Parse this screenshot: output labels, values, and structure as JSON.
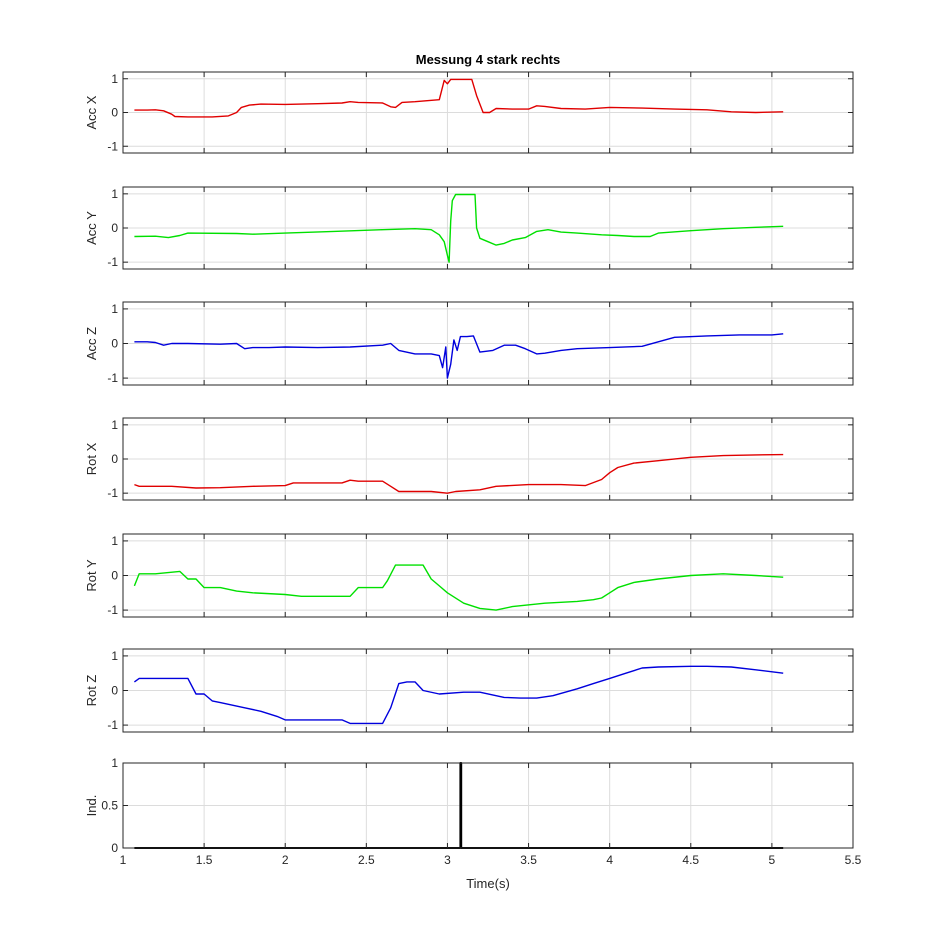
{
  "chart_data": {
    "type": "line",
    "title": "Messung 4 stark rechts",
    "xlabel": "Time(s)",
    "xlim": [
      1,
      5.5
    ],
    "xticks": [
      "1",
      "1.5",
      "2",
      "2.5",
      "3",
      "3.5",
      "4",
      "4.5",
      "5",
      "5.5"
    ],
    "grid": true,
    "panels": [
      {
        "ylabel": "Acc X",
        "ylim": [
          -1.2,
          1.2
        ],
        "yticks": [
          "-1",
          "0",
          "1"
        ],
        "color": "#e00000",
        "points": [
          [
            1.07,
            0.07
          ],
          [
            1.15,
            0.07
          ],
          [
            1.2,
            0.08
          ],
          [
            1.25,
            0.05
          ],
          [
            1.3,
            -0.05
          ],
          [
            1.32,
            -0.12
          ],
          [
            1.4,
            -0.13
          ],
          [
            1.55,
            -0.13
          ],
          [
            1.65,
            -0.1
          ],
          [
            1.7,
            0.0
          ],
          [
            1.73,
            0.15
          ],
          [
            1.78,
            0.22
          ],
          [
            1.85,
            0.25
          ],
          [
            2.0,
            0.24
          ],
          [
            2.2,
            0.26
          ],
          [
            2.35,
            0.28
          ],
          [
            2.4,
            0.32
          ],
          [
            2.45,
            0.3
          ],
          [
            2.6,
            0.28
          ],
          [
            2.65,
            0.17
          ],
          [
            2.68,
            0.15
          ],
          [
            2.72,
            0.3
          ],
          [
            2.8,
            0.32
          ],
          [
            2.95,
            0.38
          ],
          [
            2.98,
            0.95
          ],
          [
            3.0,
            0.85
          ],
          [
            3.02,
            0.98
          ],
          [
            3.15,
            0.98
          ],
          [
            3.18,
            0.5
          ],
          [
            3.22,
            0.0
          ],
          [
            3.26,
            0.0
          ],
          [
            3.3,
            0.12
          ],
          [
            3.4,
            0.1
          ],
          [
            3.5,
            0.1
          ],
          [
            3.55,
            0.2
          ],
          [
            3.6,
            0.18
          ],
          [
            3.7,
            0.12
          ],
          [
            3.85,
            0.1
          ],
          [
            4.0,
            0.15
          ],
          [
            4.2,
            0.13
          ],
          [
            4.4,
            0.1
          ],
          [
            4.6,
            0.08
          ],
          [
            4.75,
            0.02
          ],
          [
            4.9,
            0.0
          ],
          [
            5.07,
            0.02
          ]
        ]
      },
      {
        "ylabel": "Acc Y",
        "ylim": [
          -1.2,
          1.2
        ],
        "yticks": [
          "-1",
          "0",
          "1"
        ],
        "color": "#00e000",
        "points": [
          [
            1.07,
            -0.25
          ],
          [
            1.2,
            -0.24
          ],
          [
            1.28,
            -0.28
          ],
          [
            1.35,
            -0.22
          ],
          [
            1.4,
            -0.15
          ],
          [
            1.7,
            -0.16
          ],
          [
            1.8,
            -0.18
          ],
          [
            2.0,
            -0.15
          ],
          [
            2.3,
            -0.1
          ],
          [
            2.6,
            -0.05
          ],
          [
            2.8,
            -0.02
          ],
          [
            2.9,
            -0.05
          ],
          [
            2.95,
            -0.2
          ],
          [
            2.98,
            -0.4
          ],
          [
            3.0,
            -0.8
          ],
          [
            3.01,
            -1.0
          ],
          [
            3.02,
            0.2
          ],
          [
            3.03,
            0.8
          ],
          [
            3.05,
            0.98
          ],
          [
            3.17,
            0.98
          ],
          [
            3.18,
            0.0
          ],
          [
            3.2,
            -0.3
          ],
          [
            3.25,
            -0.4
          ],
          [
            3.3,
            -0.5
          ],
          [
            3.35,
            -0.45
          ],
          [
            3.4,
            -0.35
          ],
          [
            3.48,
            -0.28
          ],
          [
            3.55,
            -0.1
          ],
          [
            3.62,
            -0.05
          ],
          [
            3.7,
            -0.12
          ],
          [
            3.8,
            -0.15
          ],
          [
            3.95,
            -0.2
          ],
          [
            4.05,
            -0.22
          ],
          [
            4.15,
            -0.25
          ],
          [
            4.25,
            -0.25
          ],
          [
            4.3,
            -0.15
          ],
          [
            4.5,
            -0.08
          ],
          [
            4.7,
            -0.02
          ],
          [
            4.9,
            0.02
          ],
          [
            5.07,
            0.05
          ]
        ]
      },
      {
        "ylabel": "Acc Z",
        "ylim": [
          -1.2,
          1.2
        ],
        "yticks": [
          "-1",
          "0",
          "1"
        ],
        "color": "#0000dd",
        "points": [
          [
            1.07,
            0.05
          ],
          [
            1.15,
            0.05
          ],
          [
            1.2,
            0.03
          ],
          [
            1.25,
            -0.05
          ],
          [
            1.3,
            0.0
          ],
          [
            1.4,
            0.0
          ],
          [
            1.6,
            -0.02
          ],
          [
            1.7,
            0.0
          ],
          [
            1.75,
            -0.15
          ],
          [
            1.8,
            -0.12
          ],
          [
            1.9,
            -0.12
          ],
          [
            2.0,
            -0.1
          ],
          [
            2.2,
            -0.12
          ],
          [
            2.4,
            -0.1
          ],
          [
            2.6,
            -0.05
          ],
          [
            2.65,
            0.0
          ],
          [
            2.7,
            -0.2
          ],
          [
            2.8,
            -0.3
          ],
          [
            2.9,
            -0.3
          ],
          [
            2.95,
            -0.35
          ],
          [
            2.97,
            -0.7
          ],
          [
            2.99,
            -0.1
          ],
          [
            3.0,
            -1.0
          ],
          [
            3.02,
            -0.6
          ],
          [
            3.04,
            0.1
          ],
          [
            3.06,
            -0.2
          ],
          [
            3.08,
            0.2
          ],
          [
            3.12,
            0.2
          ],
          [
            3.16,
            0.22
          ],
          [
            3.2,
            -0.25
          ],
          [
            3.28,
            -0.2
          ],
          [
            3.35,
            -0.05
          ],
          [
            3.42,
            -0.05
          ],
          [
            3.48,
            -0.15
          ],
          [
            3.55,
            -0.3
          ],
          [
            3.6,
            -0.28
          ],
          [
            3.7,
            -0.2
          ],
          [
            3.8,
            -0.15
          ],
          [
            4.0,
            -0.12
          ],
          [
            4.2,
            -0.08
          ],
          [
            4.3,
            0.05
          ],
          [
            4.4,
            0.18
          ],
          [
            4.6,
            0.22
          ],
          [
            4.8,
            0.25
          ],
          [
            5.0,
            0.25
          ],
          [
            5.07,
            0.28
          ]
        ]
      },
      {
        "ylabel": "Rot X",
        "ylim": [
          -1.2,
          1.2
        ],
        "yticks": [
          "-1",
          "0",
          "1"
        ],
        "color": "#e00000",
        "points": [
          [
            1.07,
            -0.75
          ],
          [
            1.1,
            -0.8
          ],
          [
            1.3,
            -0.8
          ],
          [
            1.45,
            -0.85
          ],
          [
            1.6,
            -0.84
          ],
          [
            1.8,
            -0.8
          ],
          [
            2.0,
            -0.78
          ],
          [
            2.05,
            -0.7
          ],
          [
            2.35,
            -0.7
          ],
          [
            2.4,
            -0.62
          ],
          [
            2.45,
            -0.65
          ],
          [
            2.6,
            -0.65
          ],
          [
            2.65,
            -0.8
          ],
          [
            2.7,
            -0.95
          ],
          [
            2.9,
            -0.95
          ],
          [
            3.0,
            -1.0
          ],
          [
            3.05,
            -0.95
          ],
          [
            3.2,
            -0.9
          ],
          [
            3.3,
            -0.8
          ],
          [
            3.5,
            -0.75
          ],
          [
            3.7,
            -0.75
          ],
          [
            3.85,
            -0.78
          ],
          [
            3.95,
            -0.6
          ],
          [
            4.0,
            -0.4
          ],
          [
            4.05,
            -0.25
          ],
          [
            4.15,
            -0.12
          ],
          [
            4.3,
            -0.05
          ],
          [
            4.5,
            0.05
          ],
          [
            4.7,
            0.1
          ],
          [
            4.9,
            0.12
          ],
          [
            5.07,
            0.13
          ]
        ]
      },
      {
        "ylabel": "Rot Y",
        "ylim": [
          -1.2,
          1.2
        ],
        "yticks": [
          "-1",
          "0",
          "1"
        ],
        "color": "#00e000",
        "points": [
          [
            1.07,
            -0.3
          ],
          [
            1.1,
            0.05
          ],
          [
            1.2,
            0.05
          ],
          [
            1.35,
            0.12
          ],
          [
            1.4,
            -0.1
          ],
          [
            1.45,
            -0.1
          ],
          [
            1.5,
            -0.35
          ],
          [
            1.6,
            -0.35
          ],
          [
            1.7,
            -0.45
          ],
          [
            1.8,
            -0.5
          ],
          [
            2.0,
            -0.55
          ],
          [
            2.1,
            -0.6
          ],
          [
            2.3,
            -0.6
          ],
          [
            2.4,
            -0.6
          ],
          [
            2.45,
            -0.35
          ],
          [
            2.6,
            -0.35
          ],
          [
            2.63,
            -0.15
          ],
          [
            2.68,
            0.3
          ],
          [
            2.72,
            0.3
          ],
          [
            2.85,
            0.3
          ],
          [
            2.9,
            -0.1
          ],
          [
            2.95,
            -0.3
          ],
          [
            3.0,
            -0.5
          ],
          [
            3.1,
            -0.8
          ],
          [
            3.2,
            -0.95
          ],
          [
            3.3,
            -1.0
          ],
          [
            3.4,
            -0.9
          ],
          [
            3.6,
            -0.8
          ],
          [
            3.8,
            -0.75
          ],
          [
            3.9,
            -0.7
          ],
          [
            3.95,
            -0.65
          ],
          [
            4.0,
            -0.5
          ],
          [
            4.05,
            -0.35
          ],
          [
            4.15,
            -0.2
          ],
          [
            4.3,
            -0.1
          ],
          [
            4.5,
            0.0
          ],
          [
            4.7,
            0.05
          ],
          [
            4.9,
            0.0
          ],
          [
            5.07,
            -0.05
          ]
        ]
      },
      {
        "ylabel": "Rot Z",
        "ylim": [
          -1.2,
          1.2
        ],
        "yticks": [
          "-1",
          "0",
          "1"
        ],
        "color": "#0000dd",
        "points": [
          [
            1.07,
            0.25
          ],
          [
            1.1,
            0.35
          ],
          [
            1.4,
            0.35
          ],
          [
            1.45,
            -0.1
          ],
          [
            1.5,
            -0.1
          ],
          [
            1.55,
            -0.3
          ],
          [
            1.6,
            -0.35
          ],
          [
            1.75,
            -0.5
          ],
          [
            1.85,
            -0.6
          ],
          [
            1.95,
            -0.75
          ],
          [
            2.0,
            -0.85
          ],
          [
            2.2,
            -0.85
          ],
          [
            2.35,
            -0.85
          ],
          [
            2.4,
            -0.95
          ],
          [
            2.6,
            -0.95
          ],
          [
            2.65,
            -0.5
          ],
          [
            2.7,
            0.2
          ],
          [
            2.75,
            0.25
          ],
          [
            2.8,
            0.25
          ],
          [
            2.85,
            0.0
          ],
          [
            2.95,
            -0.1
          ],
          [
            3.1,
            -0.05
          ],
          [
            3.2,
            -0.05
          ],
          [
            3.3,
            -0.15
          ],
          [
            3.35,
            -0.2
          ],
          [
            3.45,
            -0.22
          ],
          [
            3.55,
            -0.22
          ],
          [
            3.65,
            -0.15
          ],
          [
            3.8,
            0.05
          ],
          [
            3.9,
            0.2
          ],
          [
            4.0,
            0.35
          ],
          [
            4.1,
            0.5
          ],
          [
            4.2,
            0.65
          ],
          [
            4.3,
            0.68
          ],
          [
            4.5,
            0.7
          ],
          [
            4.6,
            0.7
          ],
          [
            4.75,
            0.68
          ],
          [
            4.9,
            0.6
          ],
          [
            5.07,
            0.5
          ]
        ]
      },
      {
        "ylabel": "Ind.",
        "ylim": [
          0,
          1
        ],
        "yticks": [
          "0",
          "0.5",
          "1"
        ],
        "color": "#000000",
        "points": [
          [
            1.07,
            0
          ],
          [
            3.08,
            0
          ],
          [
            3.08,
            1
          ],
          [
            3.085,
            1
          ],
          [
            3.085,
            0
          ],
          [
            5.07,
            0
          ]
        ]
      }
    ]
  }
}
